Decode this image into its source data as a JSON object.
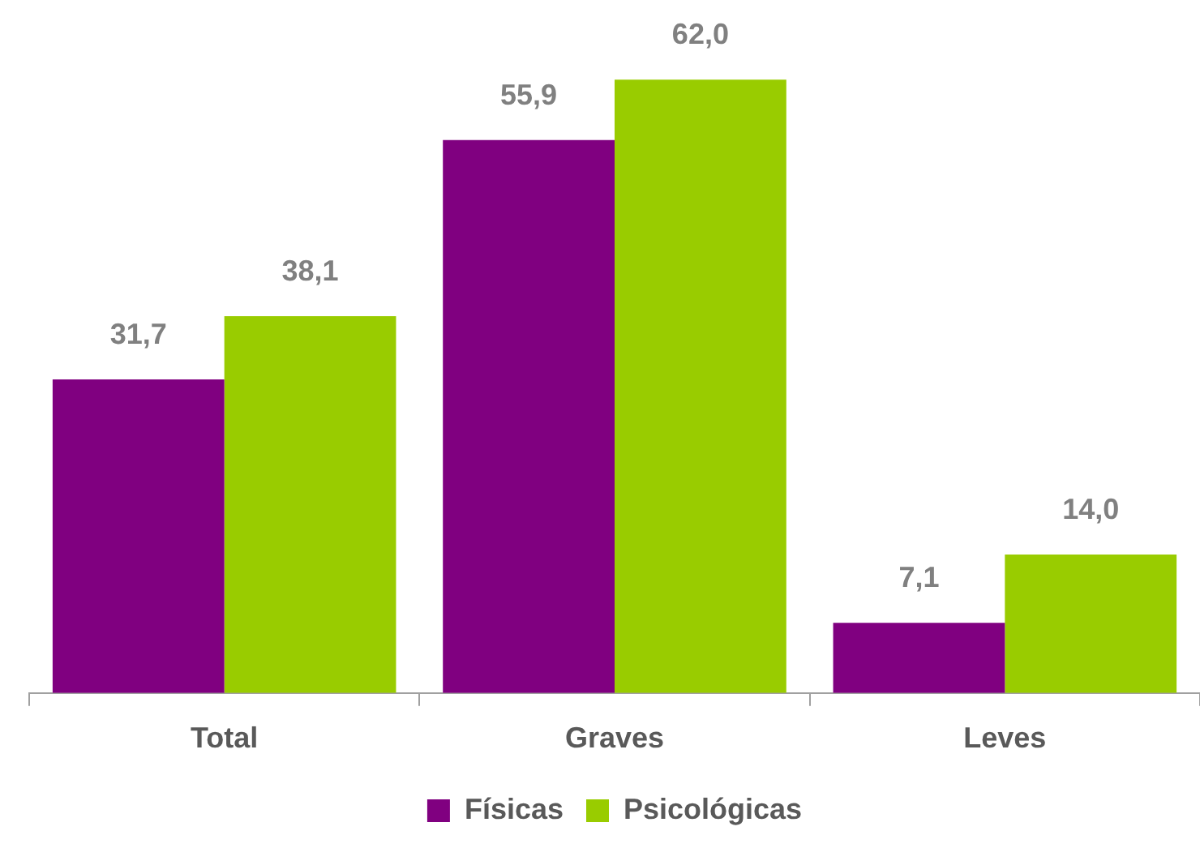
{
  "chart_data": {
    "type": "bar",
    "categories": [
      "Total",
      "Graves",
      "Leves"
    ],
    "series": [
      {
        "name": "Físicas",
        "color": "#800080",
        "values": [
          31.7,
          55.9,
          7.1
        ],
        "value_labels": [
          "31,7",
          "55,9",
          "7,1"
        ]
      },
      {
        "name": "Psicológicas",
        "color": "#99cc00",
        "values": [
          38.1,
          62.0,
          14.0
        ],
        "value_labels": [
          "38,1",
          "62,0",
          "14,0"
        ]
      }
    ],
    "legend": "bottom",
    "grid": false
  }
}
